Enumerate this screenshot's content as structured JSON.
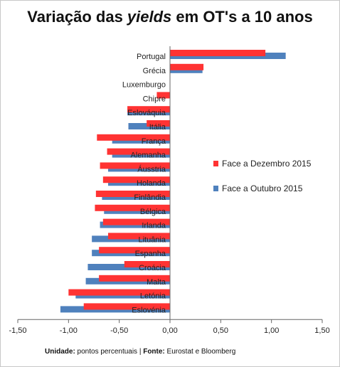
{
  "title_pre": "Variação das ",
  "title_em": "yields",
  "title_post": " em OT's a 10 anos",
  "note": {
    "unit_label": "Unidade:",
    "unit_value": " pontos percentuais | ",
    "source_label": "Fonte:",
    "source_value": " Eurostat e Bloomberg"
  },
  "colors": {
    "dec": "#ff3333",
    "oct": "#4f81bd",
    "axis": "#666666"
  },
  "chart_data": {
    "type": "bar",
    "orientation": "horizontal",
    "title": "Variação das yields em OT's a 10 anos",
    "categories": [
      "Portugal",
      "Grécia",
      "Luxemburgo",
      "Chipre",
      "Eslováquia",
      "Itália",
      "França",
      "Alemanha",
      "Áusstria",
      "Holanda",
      "Finlândia",
      "Bélgica",
      "Irlanda",
      "Lituânia",
      "Espanha",
      "Croácia",
      "Malta",
      "Letónia",
      "Eslovénia"
    ],
    "series": [
      {
        "name": "Face a Dezembro 2015",
        "color": "#ff3333",
        "values": [
          0.94,
          0.33,
          0.0,
          -0.13,
          -0.42,
          -0.23,
          -0.72,
          -0.62,
          -0.69,
          -0.66,
          -0.73,
          -0.74,
          -0.66,
          -0.61,
          -0.7,
          -0.45,
          -0.7,
          -1.0,
          -0.85
        ]
      },
      {
        "name": "Face a Outubro 2015",
        "color": "#4f81bd",
        "values": [
          1.14,
          0.32,
          0.0,
          0.0,
          -0.42,
          -0.41,
          -0.57,
          -0.57,
          -0.61,
          -0.61,
          -0.67,
          -0.65,
          -0.69,
          -0.77,
          -0.77,
          -0.81,
          -0.83,
          -0.93,
          -1.08
        ]
      }
    ],
    "xlim": [
      -1.5,
      1.5
    ],
    "ticks": [
      "-1,50",
      "-1,00",
      "-0,50",
      "0,00",
      "0,50",
      "1,00",
      "1,50"
    ],
    "tick_values": [
      -1.5,
      -1.0,
      -0.5,
      0.0,
      0.5,
      1.0,
      1.5
    ],
    "legend_position": "right"
  }
}
